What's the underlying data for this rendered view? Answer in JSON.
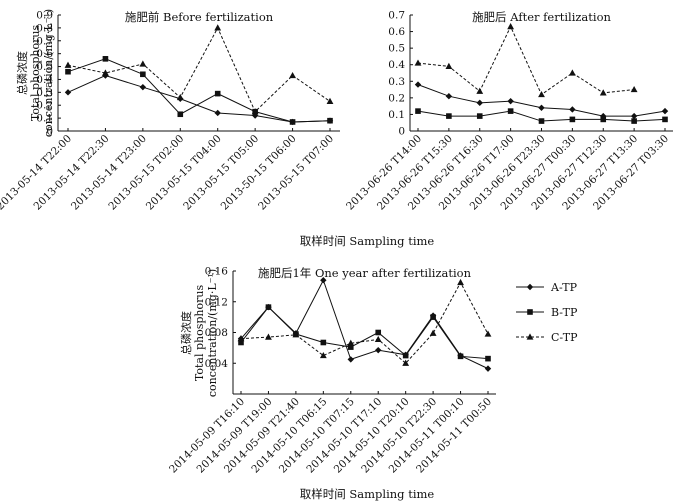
{
  "chart_data": [
    {
      "type": "line",
      "title": "施肥前 Before fertilization",
      "ylabel": [
        "总磷浓度",
        "Total phosphorus",
        "concentration/(mg·L⁻¹)"
      ],
      "xlabel": "取样时间 Sampling time",
      "ylim": [
        0,
        0.9
      ],
      "yticks": [
        0,
        0.1,
        0.2,
        0.3,
        0.4,
        0.5,
        0.6,
        0.7,
        0.8,
        0.9
      ],
      "ytick_labels": [
        "0",
        "0.1",
        "0.2",
        "0.3",
        "0.4",
        "0.5",
        "0.6",
        "0.7",
        "0.8",
        "0.9"
      ],
      "categories": [
        "2013-05-14 T22:00",
        "2013-05-14 T22:30",
        "2013-05-14 T23:00",
        "2013-05-15 T02:00",
        "2013-05-15 T04:00",
        "2013-05-15 T05:00",
        "2013-50-15 T06:00",
        "2013-05-15 T07:00"
      ],
      "series": [
        {
          "name": "A-TP",
          "values": [
            0.3,
            0.43,
            0.34,
            0.25,
            0.14,
            0.12,
            0.07,
            0.08
          ]
        },
        {
          "name": "B-TP",
          "values": [
            0.46,
            0.56,
            0.44,
            0.13,
            0.29,
            0.15,
            0.07,
            0.08
          ]
        },
        {
          "name": "C-TP",
          "values": [
            0.51,
            0.45,
            0.52,
            0.26,
            0.8,
            0.15,
            0.43,
            0.23
          ]
        }
      ]
    },
    {
      "type": "line",
      "title": "施肥后 After fertilization",
      "ylabel": [],
      "xlabel": "取样时间 Sampling time",
      "ylim": [
        0,
        0.7
      ],
      "yticks": [
        0,
        0.1,
        0.2,
        0.3,
        0.4,
        0.5,
        0.6,
        0.7
      ],
      "ytick_labels": [
        "0",
        "0.1",
        "0.2",
        "0.3",
        "0.4",
        "0.5",
        "0.6",
        "0.7"
      ],
      "categories": [
        "2013-06-26 T14:00",
        "2013-06-26 T15:30",
        "2013-06-26 T16:30",
        "2013-06-26 T17:00",
        "2013-06-26 T23:30",
        "2013-06-27 T00:30",
        "2013-06-27 T12:30",
        "2013-06-27 T13:30",
        "2013-06-27 T03:30"
      ],
      "series": [
        {
          "name": "A-TP",
          "values": [
            0.28,
            0.21,
            0.17,
            0.18,
            0.14,
            0.13,
            0.09,
            0.09,
            0.12
          ]
        },
        {
          "name": "B-TP",
          "values": [
            0.12,
            0.09,
            0.09,
            0.12,
            0.06,
            0.07,
            0.07,
            0.06,
            0.07
          ]
        },
        {
          "name": "C-TP",
          "values": [
            0.41,
            0.39,
            0.24,
            0.63,
            0.22,
            0.35,
            0.23,
            0.25,
            null
          ]
        }
      ]
    },
    {
      "type": "line",
      "title": "施肥后1年 One year after fertilization",
      "ylabel": [
        "总磷浓度",
        "Total phosphorus",
        "concentration/(mg·L⁻¹)"
      ],
      "xlabel": "取样时间 Sampling time",
      "ylim": [
        0,
        0.16
      ],
      "yticks": [
        0.04,
        0.08,
        0.12,
        0.16
      ],
      "ytick_labels": [
        "0.04",
        "0.08",
        "0.12",
        "0.16"
      ],
      "categories": [
        "2014-05-09 T16:10",
        "2014-05-09 T19:00",
        "2014-05-09 T21:40",
        "2014-05-10 T06:15",
        "2014-05-10 T07:15",
        "2014-05-10 T17:10",
        "2014-05-10 T20:10",
        "2014-05-10 T22:30",
        "2014-05-11 T00:10",
        "2014-05-11 T00:50"
      ],
      "series": [
        {
          "name": "A-TP",
          "values": [
            0.072,
            0.113,
            0.079,
            0.148,
            0.045,
            0.057,
            0.051,
            0.102,
            0.05,
            0.033
          ]
        },
        {
          "name": "B-TP",
          "values": [
            0.067,
            0.113,
            0.078,
            0.067,
            0.061,
            0.08,
            0.05,
            0.1,
            0.049,
            0.046
          ]
        },
        {
          "name": "C-TP",
          "values": [
            0.072,
            0.074,
            0.077,
            0.05,
            0.066,
            0.071,
            0.04,
            0.079,
            0.145,
            0.078
          ]
        }
      ]
    }
  ],
  "legend": [
    {
      "label": "A-TP",
      "marker": "diamond",
      "dash": "solid"
    },
    {
      "label": "B-TP",
      "marker": "square",
      "dash": "solid"
    },
    {
      "label": "C-TP",
      "marker": "triangle",
      "dash": "dashed"
    }
  ]
}
